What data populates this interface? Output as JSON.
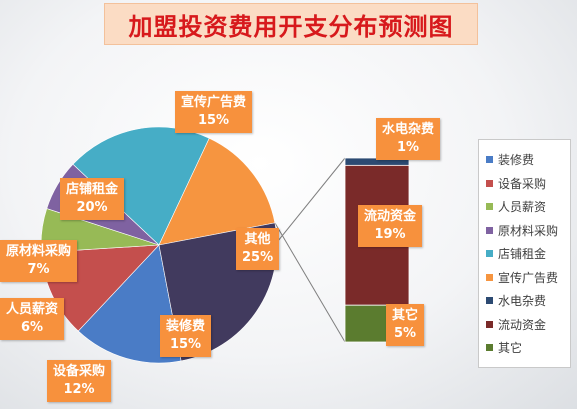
{
  "chart_data": {
    "type": "pie",
    "subtype": "bar-of-pie",
    "title": "加盟投资费用开支分布预测图",
    "pie": [
      {
        "name": "装修费",
        "value": 15,
        "color": "#4a7cc6"
      },
      {
        "name": "设备采购",
        "value": 12,
        "color": "#c44f4d"
      },
      {
        "name": "人员薪资",
        "value": 6,
        "color": "#97ba56"
      },
      {
        "name": "原材料采购",
        "value": 7,
        "color": "#7f62a1"
      },
      {
        "name": "店铺租金",
        "value": 20,
        "color": "#46adc6"
      },
      {
        "name": "宣传广告费",
        "value": 15,
        "color": "#f69540"
      },
      {
        "name": "其他",
        "value": 25,
        "color": "#413a5e"
      }
    ],
    "bar": [
      {
        "name": "水电杂费",
        "value": 1,
        "color": "#2c4a72"
      },
      {
        "name": "流动资金",
        "value": 19,
        "color": "#7a2a29"
      },
      {
        "name": "其它",
        "value": 5,
        "color": "#5b7c2f"
      }
    ],
    "legend": [
      "装修费",
      "设备采购",
      "人员薪资",
      "原材料采购",
      "店铺租金",
      "宣传广告费",
      "水电杂费",
      "流动资金",
      "其它"
    ],
    "legend_colors": [
      "#4a7cc6",
      "#c44f4d",
      "#97ba56",
      "#7f62a1",
      "#46adc6",
      "#f69540",
      "#2c4a72",
      "#7a2a29",
      "#5b7c2f"
    ],
    "legend_position": "right",
    "label_color": "#f7913d",
    "unit": "%"
  }
}
